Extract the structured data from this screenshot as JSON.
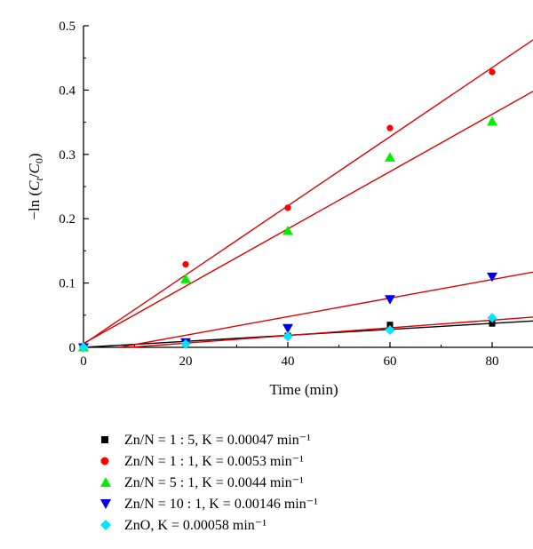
{
  "chart_data": {
    "type": "scatter",
    "xlabel": "Time (min)",
    "ylabel": "−ln (C_t/C_0)",
    "xlim": [
      0,
      88
    ],
    "ylim": [
      0,
      0.5
    ],
    "x_ticks": [
      "0",
      "20",
      "40",
      "60",
      "80"
    ],
    "y_ticks": [
      "0",
      "0.1",
      "0.2",
      "0.3",
      "0.4",
      "0.5"
    ],
    "grid": false,
    "legend_position": "below",
    "series": [
      {
        "name": "Zn/N = 1 : 5, K = 0.00047 min⁻¹",
        "marker": "square",
        "color": "#000000",
        "x": [
          0,
          20,
          40,
          60,
          80
        ],
        "y": [
          0.0,
          0.008,
          0.018,
          0.035,
          0.037
        ],
        "fit_line": {
          "color": "#000000",
          "x": [
            0,
            88
          ],
          "y": [
            0.0,
            0.041
          ]
        }
      },
      {
        "name": "Zn/N = 1 : 1, K = 0.0053 min⁻¹",
        "marker": "circle",
        "color": "#ff0000",
        "x": [
          0,
          20,
          40,
          60,
          80
        ],
        "y": [
          0.0,
          0.129,
          0.217,
          0.341,
          0.428
        ],
        "fit_line": {
          "color": "#dd0000",
          "x": [
            0,
            88
          ],
          "y": [
            0.005,
            0.478
          ]
        }
      },
      {
        "name": "Zn/N = 5 : 1, K = 0.0044 min⁻¹",
        "marker": "triangle-up",
        "color": "#00ee00",
        "x": [
          0,
          20,
          40,
          60,
          80
        ],
        "y": [
          0.0,
          0.106,
          0.181,
          0.295,
          0.351
        ],
        "fit_line": {
          "color": "#dd0000",
          "x": [
            0,
            88
          ],
          "y": [
            0.006,
            0.398
          ]
        }
      },
      {
        "name": "Zn/N = 10 : 1, K = 0.00146 min⁻¹",
        "marker": "triangle-down",
        "color": "#0000ee",
        "x": [
          0,
          20,
          40,
          60,
          80
        ],
        "y": [
          0.0,
          0.008,
          0.03,
          0.075,
          0.11
        ],
        "fit_line": {
          "color": "#dd0000",
          "x": [
            7,
            88
          ],
          "y": [
            0.0,
            0.117
          ]
        }
      },
      {
        "name": "ZnO, K = 0.00058 min⁻¹",
        "marker": "diamond",
        "color": "#00e5ff",
        "x": [
          0,
          20,
          40,
          60,
          80
        ],
        "y": [
          0.0,
          0.005,
          0.017,
          0.027,
          0.046
        ],
        "fit_line": {
          "color": "#dd0000",
          "x": [
            9,
            88
          ],
          "y": [
            0.0,
            0.047
          ]
        }
      }
    ]
  }
}
